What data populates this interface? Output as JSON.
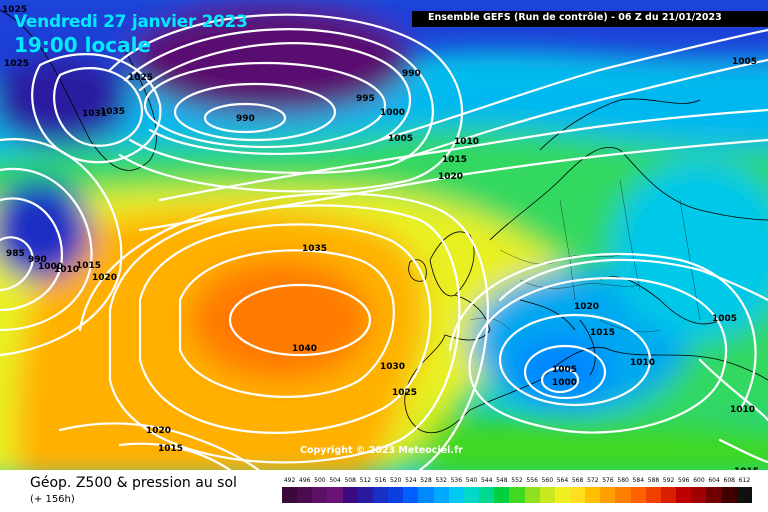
{
  "header": {
    "date": "Vendredi 27 janvier 2023",
    "local_time": "19:00 locale",
    "model_run": "Ensemble GEFS  (Run de contrôle)  -  06 Z du 21/01/2023"
  },
  "copyright": "Copyright © 2023 Meteociel.fr",
  "footer": {
    "product": "Géop. Z500 & pression au sol",
    "lead_time": "(+ 156h)"
  },
  "legend": {
    "labels": [
      "492",
      "496",
      "500",
      "504",
      "508",
      "512",
      "516",
      "520",
      "524",
      "528",
      "532",
      "536",
      "540",
      "544",
      "548",
      "552",
      "556",
      "560",
      "564",
      "568",
      "572",
      "576",
      "580",
      "584",
      "588",
      "592",
      "596",
      "600",
      "604",
      "608",
      "612"
    ],
    "colors": [
      "#3b0a3a",
      "#4b0c4e",
      "#5c1066",
      "#6a1478",
      "#3b0a82",
      "#2a1aa0",
      "#1a2fc4",
      "#0b3fe0",
      "#0060ff",
      "#0088ff",
      "#00aaff",
      "#00c8f0",
      "#00d8c8",
      "#00d890",
      "#00d040",
      "#40d820",
      "#90e020",
      "#c8e820",
      "#f0f020",
      "#ffe020",
      "#ffc000",
      "#ffa000",
      "#ff8000",
      "#ff6000",
      "#f04000",
      "#d82000",
      "#c00000",
      "#a00000",
      "#700000",
      "#400000",
      "#101010"
    ]
  },
  "colors": {
    "header_text": "#00eaff",
    "isobar": "#ffffff",
    "coast": "#000000"
  },
  "pressure_labels": [
    {
      "id": "p1025-nw",
      "text": "1025"
    },
    {
      "id": "p1025-top",
      "text": "1025"
    },
    {
      "id": "p1025-iceland",
      "text": "1025"
    },
    {
      "id": "p1031",
      "text": "1031"
    },
    {
      "id": "p1035-greenland",
      "text": "1035"
    },
    {
      "id": "p990-low",
      "text": "990"
    },
    {
      "id": "p990-ne",
      "text": "990"
    },
    {
      "id": "p995",
      "text": "995"
    },
    {
      "id": "p1000",
      "text": "1000"
    },
    {
      "id": "p1005-n",
      "text": "1005"
    },
    {
      "id": "p1005-ne",
      "text": "1005"
    },
    {
      "id": "p1010-n",
      "text": "1010"
    },
    {
      "id": "p1015-n",
      "text": "1015"
    },
    {
      "id": "p1020-n",
      "text": "1020"
    },
    {
      "id": "p985-w",
      "text": "985"
    },
    {
      "id": "p990-w",
      "text": "990"
    },
    {
      "id": "p1000-w",
      "text": "1000"
    },
    {
      "id": "p1010-w",
      "text": "1010"
    },
    {
      "id": "p1015-w",
      "text": "1015"
    },
    {
      "id": "p1020-w",
      "text": "1020"
    },
    {
      "id": "p1035-atl",
      "text": "1035"
    },
    {
      "id": "p1040",
      "text": "1040"
    },
    {
      "id": "p1030",
      "text": "1030"
    },
    {
      "id": "p1025-iberia",
      "text": "1025"
    },
    {
      "id": "p1020-sw",
      "text": "1020"
    },
    {
      "id": "p1015-sw",
      "text": "1015"
    },
    {
      "id": "p1020-alps",
      "text": "1020"
    },
    {
      "id": "p1015-balkan",
      "text": "1015"
    },
    {
      "id": "p1010-balkan",
      "text": "1010"
    },
    {
      "id": "p1005-east",
      "text": "1005"
    },
    {
      "id": "p1005-med",
      "text": "1005"
    },
    {
      "id": "p1000-med",
      "text": "1000"
    },
    {
      "id": "p1010-se",
      "text": "1010"
    },
    {
      "id": "p1015-se",
      "text": "1015"
    }
  ]
}
